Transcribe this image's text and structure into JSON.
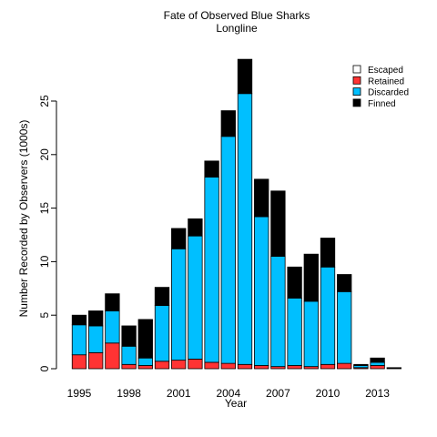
{
  "chart_data": {
    "type": "bar",
    "stacked": true,
    "title": "Fate of Observed Blue Sharks",
    "subtitle": "Longline",
    "xlabel": "Year",
    "ylabel": "Number Recorded by Observers (1000s)",
    "categories": [
      "1995",
      "1996",
      "1997",
      "1998",
      "1999",
      "2000",
      "2001",
      "2002",
      "2003",
      "2004",
      "2005",
      "2006",
      "2007",
      "2008",
      "2009",
      "2010",
      "2011",
      "2012",
      "2013",
      "2014"
    ],
    "x_tick_labels": [
      "1995",
      "1998",
      "2001",
      "2004",
      "2007",
      "2010",
      "2013"
    ],
    "y_ticks": [
      0,
      5,
      10,
      15,
      20,
      25
    ],
    "ylim": [
      0,
      29
    ],
    "grid": false,
    "legend_position": "top-right",
    "series": [
      {
        "name": "Escaped",
        "color": "#ffffff",
        "values": [
          0,
          0,
          0,
          0,
          0,
          0,
          0,
          0,
          0,
          0,
          0,
          0,
          0,
          0,
          0,
          0,
          0,
          0,
          0,
          0
        ]
      },
      {
        "name": "Retained",
        "color": "#ff3333",
        "values": [
          1.3,
          1.5,
          2.4,
          0.4,
          0.3,
          0.7,
          0.8,
          0.9,
          0.6,
          0.5,
          0.4,
          0.3,
          0.2,
          0.3,
          0.2,
          0.4,
          0.5,
          0.1,
          0.3,
          0.0
        ]
      },
      {
        "name": "Discarded",
        "color": "#00bfff",
        "values": [
          2.8,
          2.5,
          3.0,
          1.7,
          0.7,
          5.2,
          10.4,
          11.5,
          17.3,
          21.2,
          25.3,
          13.9,
          10.3,
          6.3,
          6.1,
          9.1,
          6.7,
          0.2,
          0.3,
          0.0
        ]
      },
      {
        "name": "Finned",
        "color": "#000000",
        "values": [
          0.9,
          1.4,
          1.6,
          1.9,
          3.6,
          1.7,
          1.9,
          1.6,
          1.5,
          2.4,
          3.2,
          3.5,
          6.1,
          2.9,
          4.4,
          2.7,
          1.6,
          0.1,
          0.4,
          0.1
        ]
      }
    ]
  }
}
